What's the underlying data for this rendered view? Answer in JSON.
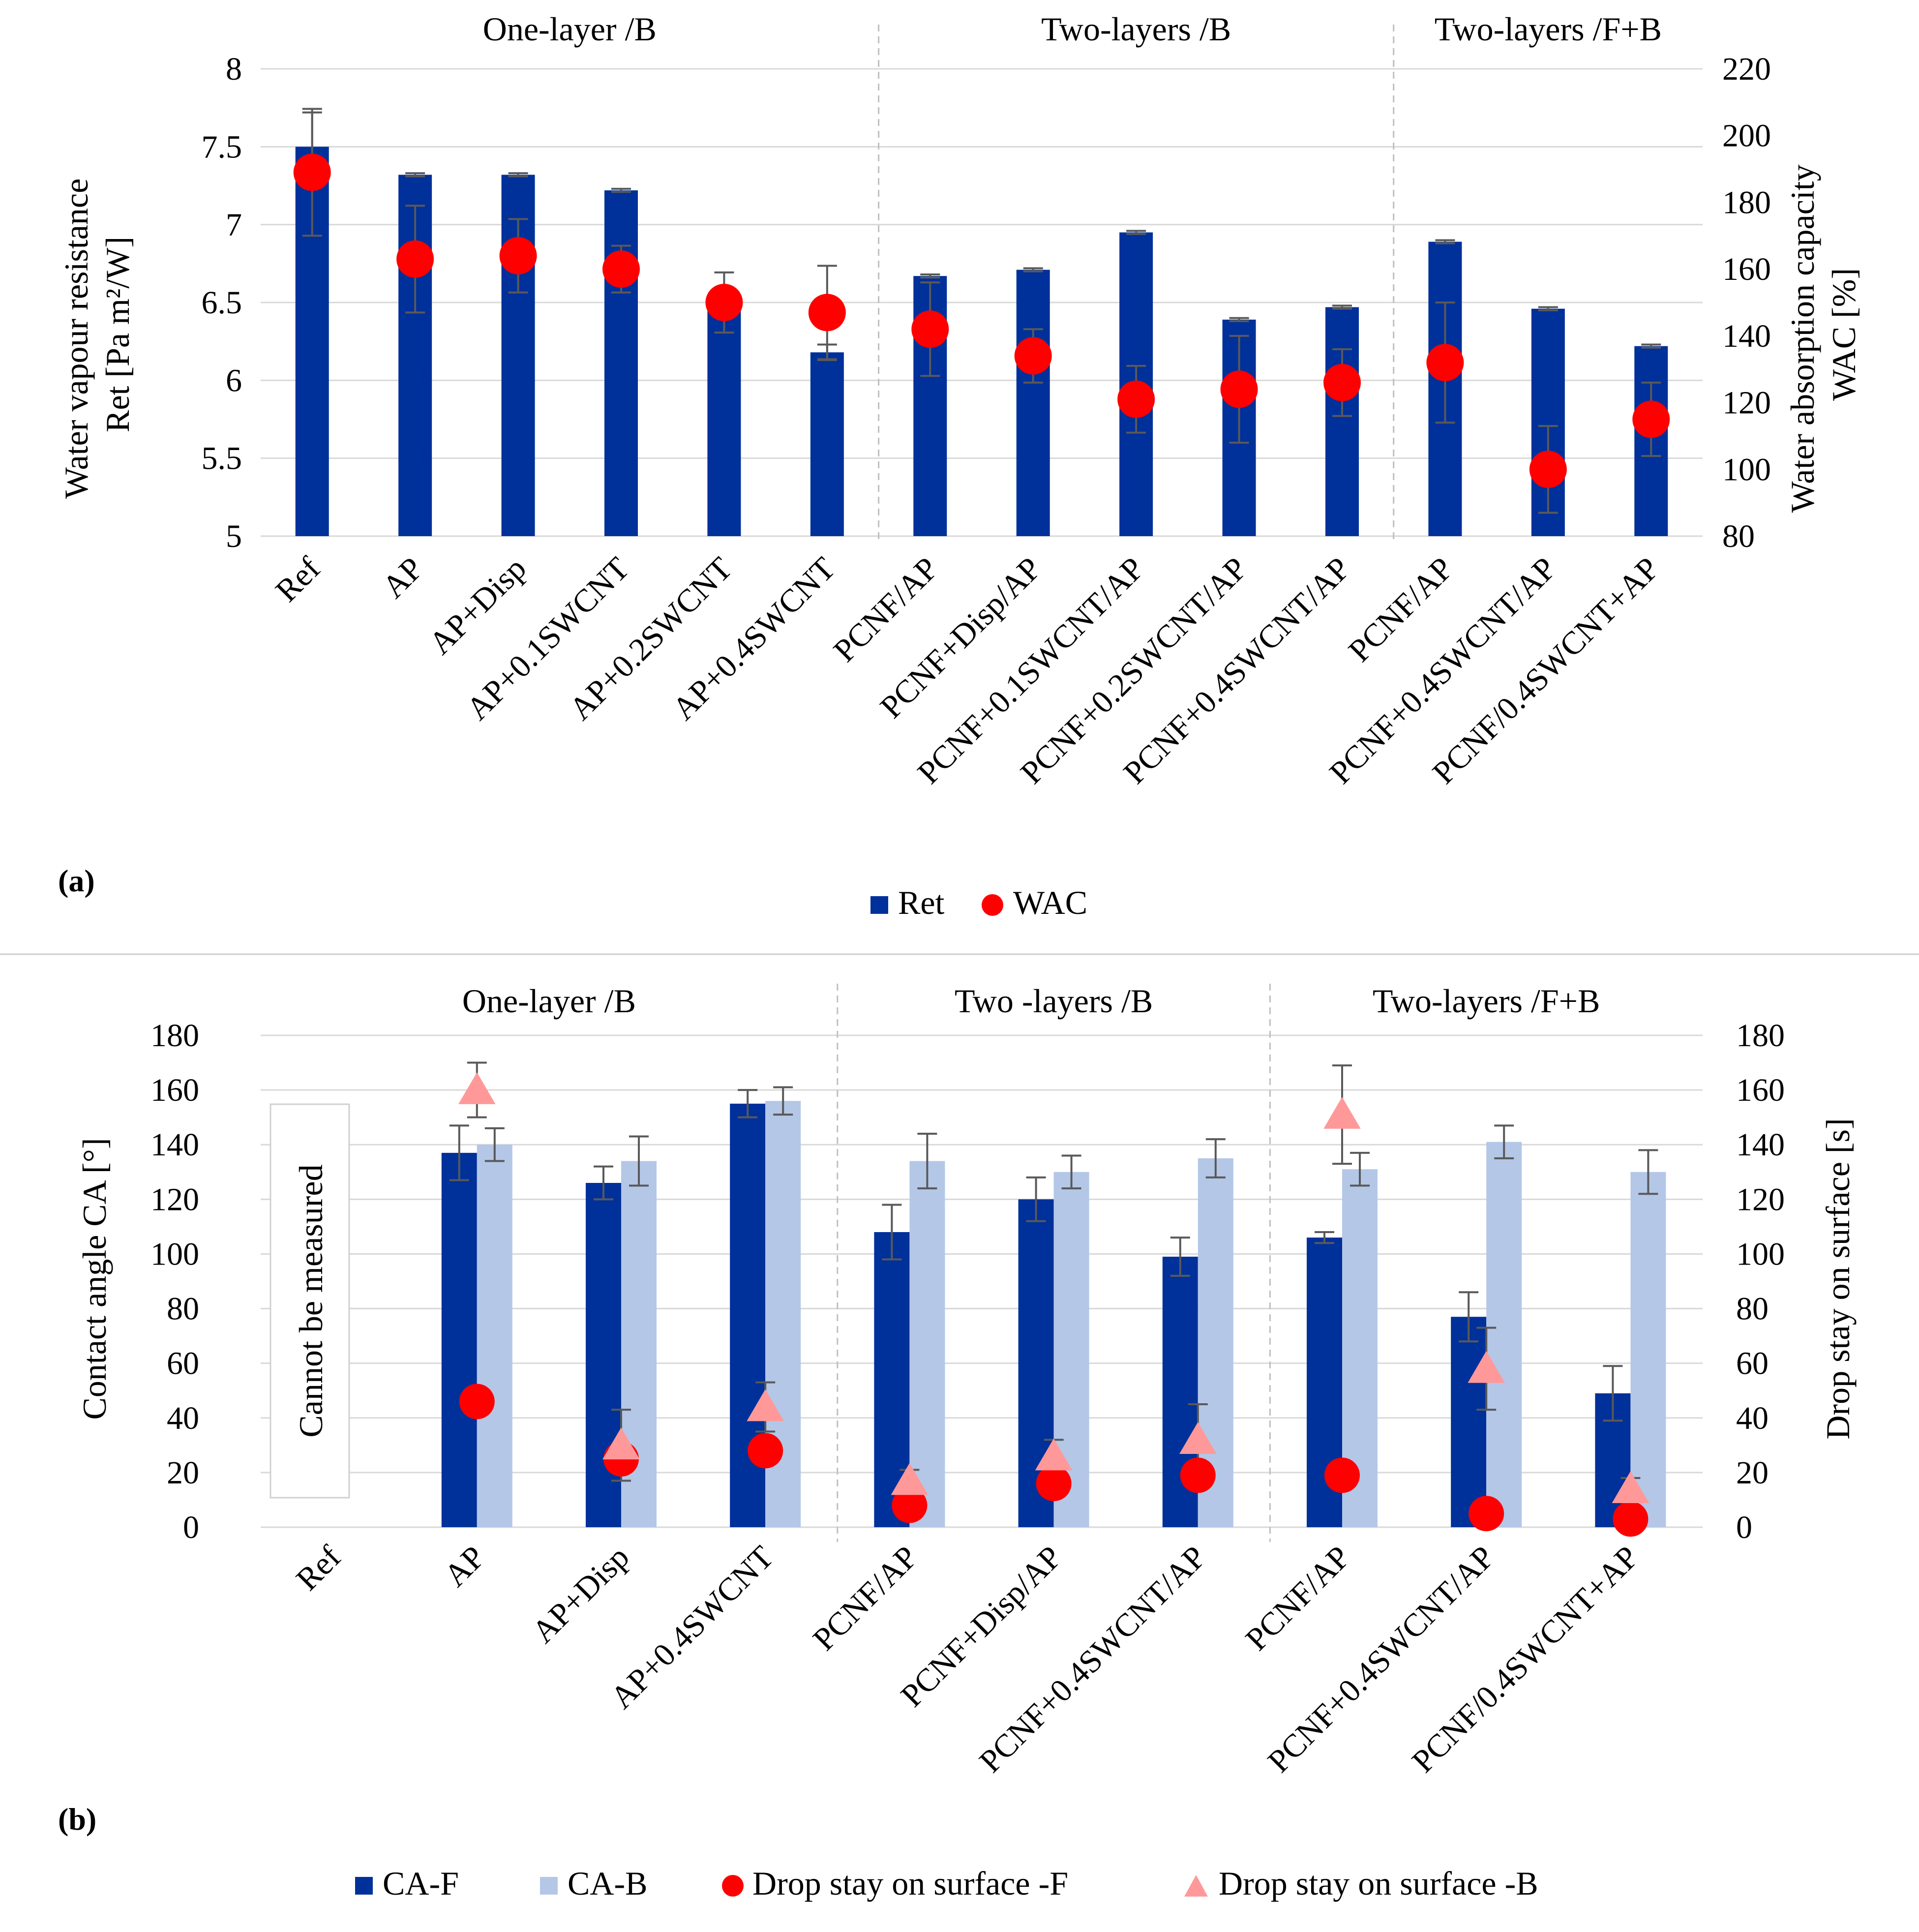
{
  "chart_data": [
    {
      "id": "a",
      "type": "bar",
      "panel_label": "(a)",
      "categories": [
        "Ref",
        "AP",
        "AP+Disp",
        "AP+0.1SWCNT",
        "AP+0.2SWCNT",
        "AP+0.4SWCNT",
        "PCNF/AP",
        "PCNF+Disp/AP",
        "PCNF+0.1SWCNT/AP",
        "PCNF+0.2SWCNT/AP",
        "PCNF+0.4SWCNT/AP",
        "PCNF/AP",
        "PCNF+0.4SWCNT/AP",
        "PCNF/0.4SWCNT+AP"
      ],
      "groups": [
        {
          "label": "One-layer /B",
          "start": 0,
          "end": 5
        },
        {
          "label": "Two-layers /B",
          "start": 6,
          "end": 10
        },
        {
          "label": "Two-layers /F+B",
          "start": 11,
          "end": 13
        }
      ],
      "ylabel_left": [
        "Water vapour resistance",
        "Ret [Pa m²/W]"
      ],
      "ylabel_right": [
        "Water absorption capacity",
        "WAC [%]"
      ],
      "ylim_left": [
        5,
        8
      ],
      "yticks_left": [
        5,
        5.5,
        6,
        6.5,
        7,
        7.5,
        8
      ],
      "ylim_right": [
        80,
        220
      ],
      "yticks_right": [
        80,
        100,
        120,
        140,
        160,
        180,
        200,
        220
      ],
      "series": [
        {
          "name": "Ret",
          "kind": "bar",
          "axis": "left",
          "color": "#00309a",
          "values": [
            7.5,
            7.32,
            7.32,
            7.22,
            6.48,
            6.18,
            6.67,
            6.71,
            6.95,
            6.39,
            6.47,
            6.89,
            6.46,
            6.22
          ],
          "errors": [
            0.22,
            0.01,
            0.01,
            0.01,
            0.01,
            0.05,
            0.01,
            0.01,
            0.01,
            0.01,
            0.01,
            0.01,
            0.01,
            0.01
          ]
        },
        {
          "name": "WAC",
          "kind": "marker",
          "marker": "circle",
          "axis": "right",
          "color": "#ff0000",
          "values": [
            189,
            163,
            164,
            160,
            150,
            147,
            142,
            134,
            121,
            124,
            126,
            132,
            100,
            115
          ],
          "errors": [
            19,
            16,
            11,
            7,
            9,
            14,
            14,
            8,
            10,
            16,
            10,
            18,
            13,
            11
          ]
        }
      ]
    },
    {
      "id": "b",
      "type": "bar",
      "panel_label": "(b)",
      "categories": [
        "Ref",
        "AP",
        "AP+Disp",
        "AP+0.4SWCNT",
        "PCNF/AP",
        "PCNF+Disp/AP",
        "PCNF+0.4SWCNT/AP",
        "PCNF/AP",
        "PCNF+0.4SWCNT/AP",
        "PCNF/0.4SWCNT+AP"
      ],
      "groups": [
        {
          "label": "One-layer /B",
          "start": 0,
          "end": 3
        },
        {
          "label": "Two -layers /B",
          "start": 4,
          "end": 6
        },
        {
          "label": "Two-layers /F+B",
          "start": 7,
          "end": 9
        }
      ],
      "annotation": "Cannot be measured",
      "ylabel_left": [
        "Contact angle CA [°]"
      ],
      "ylabel_right": [
        "Drop stay on surface [s]"
      ],
      "ylim_left": [
        0,
        180
      ],
      "yticks_left": [
        0,
        20,
        40,
        60,
        80,
        100,
        120,
        140,
        160,
        180
      ],
      "ylim_right": [
        0,
        180
      ],
      "yticks_right": [
        0,
        20,
        40,
        60,
        80,
        100,
        120,
        140,
        160,
        180
      ],
      "series": [
        {
          "name": "CA-F",
          "kind": "bar",
          "axis": "left",
          "color": "#00309a",
          "values": [
            null,
            137,
            126,
            155,
            108,
            120,
            99,
            106,
            77,
            49
          ],
          "errors": [
            null,
            10,
            6,
            5,
            10,
            8,
            7,
            2,
            9,
            10
          ]
        },
        {
          "name": "CA-B",
          "kind": "bar",
          "axis": "left",
          "color": "#b4c7e7",
          "values": [
            null,
            140,
            134,
            156,
            134,
            130,
            135,
            131,
            141,
            130
          ],
          "errors": [
            null,
            6,
            9,
            5,
            10,
            6,
            7,
            6,
            6,
            8
          ]
        },
        {
          "name": "Drop stay on surface -F",
          "kind": "marker",
          "marker": "circle",
          "axis": "right",
          "color": "#ff0000",
          "values": [
            null,
            46,
            25,
            28,
            8,
            16,
            19,
            19,
            5,
            3
          ],
          "errors": [
            null,
            null,
            null,
            null,
            null,
            null,
            null,
            null,
            null,
            null
          ]
        },
        {
          "name": "Drop stay on surface -B",
          "kind": "marker",
          "marker": "triangle",
          "axis": "right",
          "color": "#ff9999",
          "values": [
            null,
            160,
            30,
            44,
            17,
            26,
            32,
            151,
            58,
            14
          ],
          "errors": [
            null,
            10,
            13,
            9,
            4,
            6,
            13,
            18,
            15,
            4
          ]
        }
      ]
    }
  ]
}
